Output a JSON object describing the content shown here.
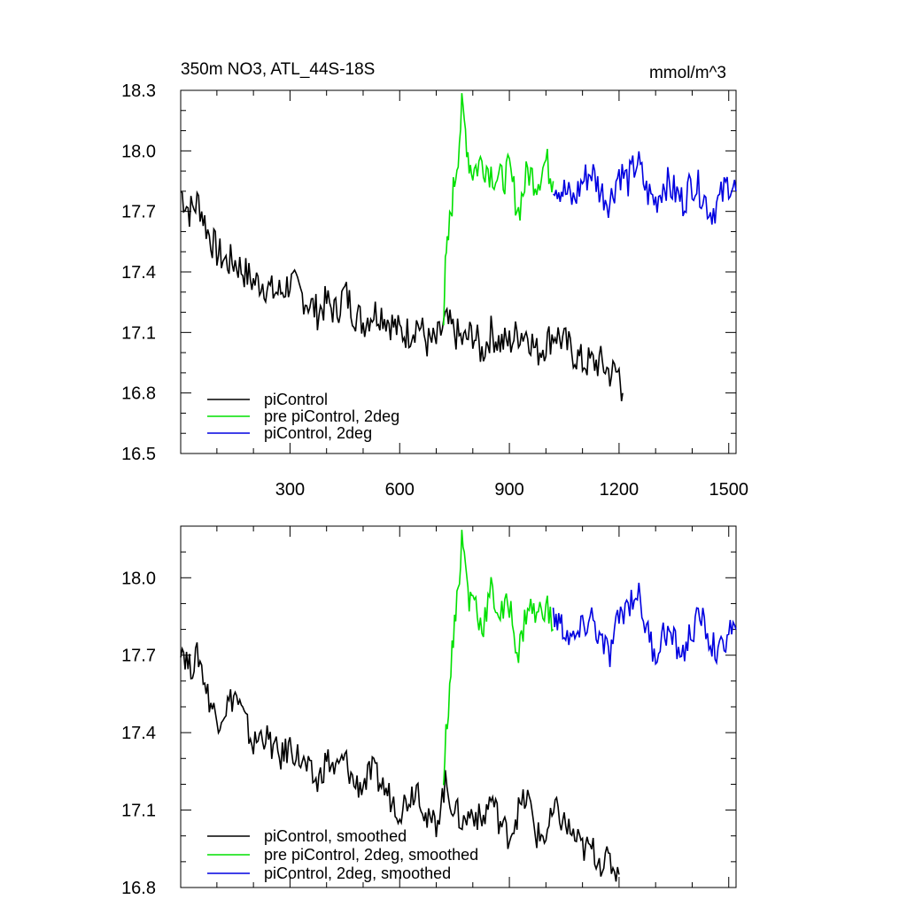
{
  "figure": {
    "title": "350m NO3, ATL_44S-18S",
    "units": "mmol/m^3"
  },
  "chart_data": [
    {
      "type": "line",
      "panel": "top",
      "xlim": [
        1,
        1520
      ],
      "ylim": [
        16.5,
        18.3
      ],
      "x_ticks": [
        300,
        600,
        900,
        1200,
        1500
      ],
      "y_ticks": [
        16.5,
        16.8,
        17.1,
        17.4,
        17.7,
        18.0,
        18.3
      ],
      "y_tick_labels": [
        "16.5",
        "16.8",
        "17.1",
        "17.4",
        "17.7",
        "18.0",
        "18.3"
      ],
      "x_tick_labels": [
        "300",
        "600",
        "900",
        "1200",
        "1500"
      ],
      "legend": "bottom-left",
      "grid": false,
      "series": [
        {
          "name": "piControl",
          "color": "#000000",
          "x": [
            1,
            25,
            50,
            75,
            100,
            125,
            150,
            175,
            200,
            225,
            250,
            275,
            300,
            325,
            350,
            375,
            400,
            425,
            450,
            475,
            500,
            525,
            550,
            575,
            600,
            625,
            650,
            675,
            700,
            725,
            750,
            775,
            800,
            825,
            850,
            875,
            900,
            925,
            950,
            975,
            1000,
            1025,
            1050,
            1075,
            1100,
            1125,
            1150,
            1175,
            1200,
            1210
          ],
          "values": [
            17.8,
            17.7,
            17.75,
            17.6,
            17.5,
            17.45,
            17.45,
            17.4,
            17.35,
            17.35,
            17.3,
            17.3,
            17.35,
            17.3,
            17.25,
            17.2,
            17.25,
            17.2,
            17.3,
            17.2,
            17.15,
            17.2,
            17.2,
            17.15,
            17.1,
            17.1,
            17.15,
            17.05,
            17.05,
            17.15,
            17.1,
            17.05,
            17.1,
            17.0,
            17.1,
            17.05,
            17.05,
            17.1,
            17.1,
            17.0,
            17.05,
            17.1,
            17.05,
            17.0,
            16.95,
            16.95,
            16.95,
            16.9,
            16.9,
            16.8
          ]
        },
        {
          "name": "pre piControl, 2deg",
          "color": "#00e000",
          "x": [
            720,
            725,
            730,
            740,
            750,
            760,
            770,
            780,
            790,
            800,
            825,
            850,
            875,
            900,
            925,
            950,
            975,
            1000,
            1020
          ],
          "values": [
            17.2,
            17.4,
            17.5,
            17.7,
            17.85,
            18.0,
            18.2,
            18.1,
            17.95,
            17.9,
            17.95,
            17.9,
            17.85,
            17.9,
            17.7,
            17.9,
            17.85,
            17.95,
            17.85
          ]
        },
        {
          "name": "piControl, 2deg",
          "color": "#0000e0",
          "x": [
            1020,
            1050,
            1075,
            1100,
            1125,
            1150,
            1175,
            1200,
            1225,
            1250,
            1275,
            1300,
            1325,
            1350,
            1375,
            1400,
            1425,
            1450,
            1475,
            1500,
            1520
          ],
          "values": [
            17.85,
            17.8,
            17.75,
            17.85,
            17.9,
            17.8,
            17.75,
            17.9,
            17.85,
            17.95,
            17.8,
            17.75,
            17.85,
            17.8,
            17.75,
            17.85,
            17.8,
            17.7,
            17.75,
            17.85,
            17.8
          ]
        }
      ]
    },
    {
      "type": "line",
      "panel": "bottom",
      "xlim": [
        1,
        1520
      ],
      "ylim": [
        16.8,
        18.2
      ],
      "x_ticks": [
        300,
        600,
        900,
        1200,
        1500
      ],
      "y_ticks": [
        16.8,
        17.1,
        17.4,
        17.7,
        18.0
      ],
      "y_tick_labels": [
        "16.8",
        "17.1",
        "17.4",
        "17.7",
        "18.0"
      ],
      "legend": "bottom-left",
      "grid": false,
      "series": [
        {
          "name": "piControl, smoothed",
          "color": "#000000",
          "x": [
            1,
            25,
            50,
            75,
            100,
            125,
            150,
            175,
            200,
            225,
            250,
            275,
            300,
            325,
            350,
            375,
            400,
            425,
            450,
            475,
            500,
            525,
            550,
            575,
            600,
            625,
            650,
            675,
            700,
            725,
            750,
            775,
            800,
            825,
            850,
            875,
            900,
            925,
            950,
            975,
            1000,
            1025,
            1050,
            1075,
            1100,
            1125,
            1150,
            1175,
            1200
          ],
          "values": [
            17.75,
            17.65,
            17.7,
            17.55,
            17.45,
            17.5,
            17.55,
            17.45,
            17.35,
            17.4,
            17.35,
            17.3,
            17.35,
            17.3,
            17.25,
            17.2,
            17.3,
            17.25,
            17.3,
            17.2,
            17.2,
            17.25,
            17.2,
            17.15,
            17.1,
            17.15,
            17.2,
            17.05,
            17.05,
            17.2,
            17.1,
            17.05,
            17.1,
            17.05,
            17.15,
            17.05,
            17.0,
            17.1,
            17.15,
            17.0,
            17.0,
            17.1,
            17.05,
            17.0,
            16.95,
            16.95,
            16.9,
            16.9,
            16.85
          ]
        },
        {
          "name": "pre piControl, 2deg, smoothed",
          "color": "#00e000",
          "x": [
            720,
            730,
            740,
            750,
            760,
            770,
            780,
            790,
            800,
            825,
            850,
            875,
            900,
            925,
            950,
            975,
            1000,
            1020
          ],
          "values": [
            17.25,
            17.45,
            17.65,
            17.85,
            17.95,
            18.15,
            18.05,
            17.9,
            17.95,
            17.8,
            17.95,
            17.85,
            17.9,
            17.7,
            17.9,
            17.85,
            17.9,
            17.8
          ]
        },
        {
          "name": "piControl, 2deg, smoothed",
          "color": "#0000e0",
          "x": [
            1020,
            1050,
            1075,
            1100,
            1125,
            1150,
            1175,
            1200,
            1225,
            1250,
            1275,
            1300,
            1325,
            1350,
            1375,
            1400,
            1425,
            1450,
            1475,
            1500,
            1520
          ],
          "values": [
            17.85,
            17.8,
            17.75,
            17.8,
            17.85,
            17.75,
            17.7,
            17.85,
            17.9,
            17.95,
            17.8,
            17.7,
            17.8,
            17.75,
            17.7,
            17.8,
            17.85,
            17.75,
            17.7,
            17.8,
            17.8
          ]
        }
      ]
    }
  ]
}
